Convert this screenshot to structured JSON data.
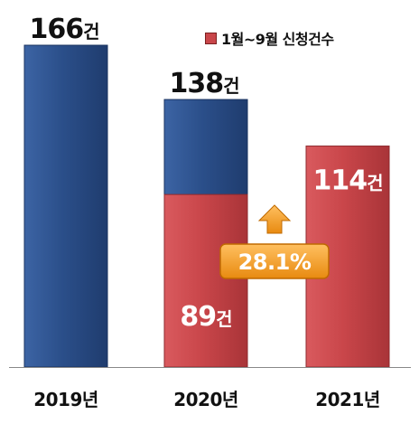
{
  "chart_data": {
    "type": "bar",
    "categories": [
      "2019년",
      "2020년",
      "2021년"
    ],
    "series": [
      {
        "name": "",
        "color": "#2d4f86",
        "values": [
          166,
          138,
          null
        ]
      },
      {
        "name": "1월~9월 신청건수",
        "color": "#c9464a",
        "values": [
          null,
          89,
          114
        ]
      }
    ],
    "value_labels": {
      "total": [
        "166건",
        "138건",
        null
      ],
      "period": [
        null,
        "89건",
        "114건"
      ]
    },
    "annotation": {
      "text": "28.1%",
      "color": "#f0a030",
      "direction": "up"
    },
    "ylim": [
      0,
      180
    ],
    "legend": {
      "position": "top-right",
      "label": "1월~9월 신청건수",
      "color": "#c9464a"
    },
    "grid": false
  }
}
